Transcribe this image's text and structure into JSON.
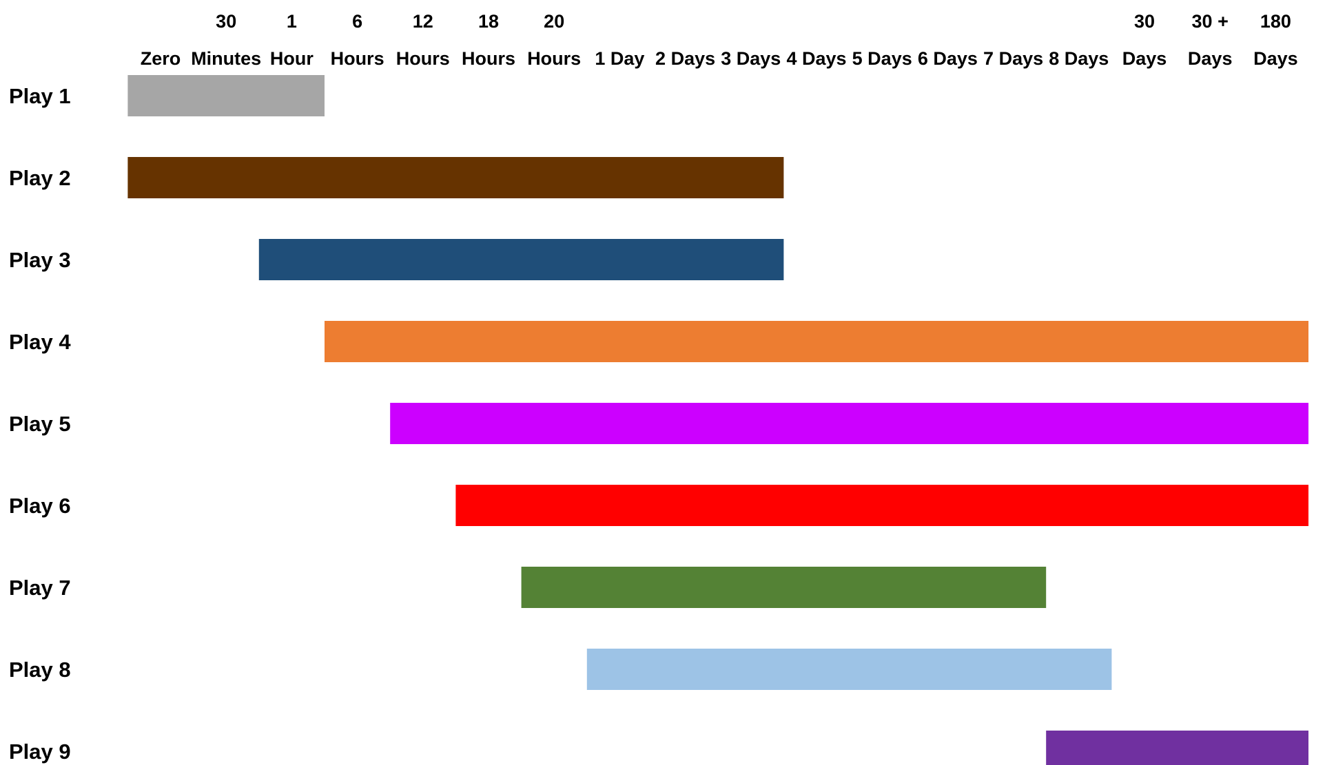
{
  "chart_data": {
    "type": "gantt",
    "title": "",
    "xlabel": "",
    "ylabel": "",
    "grid": false,
    "legend": "none",
    "x_ticks": [
      {
        "line1": "",
        "line2": "Zero"
      },
      {
        "line1": "30",
        "line2": "Minutes"
      },
      {
        "line1": "1",
        "line2": "Hour"
      },
      {
        "line1": "6",
        "line2": "Hours"
      },
      {
        "line1": "12",
        "line2": "Hours"
      },
      {
        "line1": "18",
        "line2": "Hours"
      },
      {
        "line1": "20",
        "line2": "Hours"
      },
      {
        "line1": "",
        "line2": "1 Day"
      },
      {
        "line1": "",
        "line2": "2 Days"
      },
      {
        "line1": "",
        "line2": "3 Days"
      },
      {
        "line1": "",
        "line2": "4 Days"
      },
      {
        "line1": "",
        "line2": "5 Days"
      },
      {
        "line1": "",
        "line2": "6 Days"
      },
      {
        "line1": "",
        "line2": "7 Days"
      },
      {
        "line1": "",
        "line2": "8 Days"
      },
      {
        "line1": "30",
        "line2": "Days"
      },
      {
        "line1": "30 +",
        "line2": "Days"
      },
      {
        "line1": "180",
        "line2": "Days"
      }
    ],
    "categories": [
      "Play 1",
      "Play 2",
      "Play 3",
      "Play 4",
      "Play 5",
      "Play 6",
      "Play 7",
      "Play 8",
      "Play 9"
    ],
    "bars": [
      {
        "label": "Play 1",
        "start": "Zero",
        "end": "6 Hours",
        "color": "#a6a6a6"
      },
      {
        "label": "Play 2",
        "start": "Zero",
        "end": "4 Days",
        "color": "#663300"
      },
      {
        "label": "Play 3",
        "start": "1 Hour",
        "end": "4 Days",
        "color": "#1f4e79"
      },
      {
        "label": "Play 4",
        "start": "6 Hours",
        "end": "180 Days",
        "color": "#ed7d31"
      },
      {
        "label": "Play 5",
        "start": "12 Hours",
        "end": "180 Days",
        "color": "#cc00ff"
      },
      {
        "label": "Play 6",
        "start": "18 Hours",
        "end": "180 Days",
        "color": "#ff0000"
      },
      {
        "label": "Play 7",
        "start": "20 Hours",
        "end": "8 Days",
        "color": "#548235"
      },
      {
        "label": "Play 8",
        "start": "1 Day",
        "end": "30 Days",
        "color": "#9dc3e6"
      },
      {
        "label": "Play 9",
        "start": "8 Days",
        "end": "180 Days",
        "color": "#7030a0"
      }
    ]
  }
}
